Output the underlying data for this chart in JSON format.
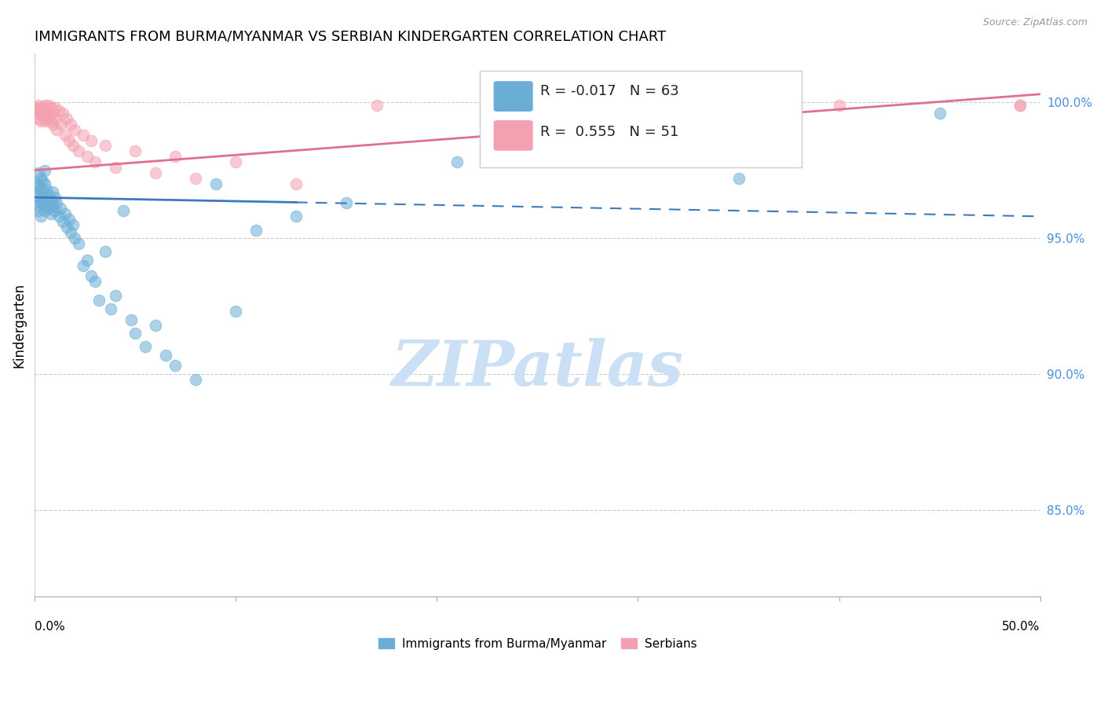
{
  "title": "IMMIGRANTS FROM BURMA/MYANMAR VS SERBIAN KINDERGARTEN CORRELATION CHART",
  "source": "Source: ZipAtlas.com",
  "ylabel": "Kindergarten",
  "ytick_labels": [
    "100.0%",
    "95.0%",
    "90.0%",
    "85.0%"
  ],
  "ytick_values": [
    1.0,
    0.95,
    0.9,
    0.85
  ],
  "xlim": [
    0.0,
    0.5
  ],
  "ylim": [
    0.818,
    1.018
  ],
  "legend_blue_r": "-0.017",
  "legend_blue_n": "63",
  "legend_pink_r": "0.555",
  "legend_pink_n": "51",
  "legend_label_blue": "Immigrants from Burma/Myanmar",
  "legend_label_pink": "Serbians",
  "blue_color": "#6aaed6",
  "pink_color": "#f4a0b0",
  "trendline_blue_color": "#3a7bbf",
  "trendline_pink_color": "#e07090",
  "watermark": "ZIPatlas",
  "watermark_color": "#cce0f5",
  "blue_scatter": [
    [
      0.001,
      0.97
    ],
    [
      0.001,
      0.966
    ],
    [
      0.001,
      0.962
    ],
    [
      0.002,
      0.974
    ],
    [
      0.002,
      0.969
    ],
    [
      0.002,
      0.965
    ],
    [
      0.002,
      0.96
    ],
    [
      0.003,
      0.972
    ],
    [
      0.003,
      0.968
    ],
    [
      0.003,
      0.963
    ],
    [
      0.003,
      0.958
    ],
    [
      0.004,
      0.971
    ],
    [
      0.004,
      0.967
    ],
    [
      0.004,
      0.963
    ],
    [
      0.005,
      0.975
    ],
    [
      0.005,
      0.97
    ],
    [
      0.005,
      0.965
    ],
    [
      0.005,
      0.96
    ],
    [
      0.006,
      0.968
    ],
    [
      0.006,
      0.962
    ],
    [
      0.007,
      0.966
    ],
    [
      0.007,
      0.961
    ],
    [
      0.008,
      0.964
    ],
    [
      0.008,
      0.959
    ],
    [
      0.009,
      0.967
    ],
    [
      0.009,
      0.962
    ],
    [
      0.01,
      0.965
    ],
    [
      0.01,
      0.96
    ],
    [
      0.011,
      0.963
    ],
    [
      0.012,
      0.958
    ],
    [
      0.013,
      0.961
    ],
    [
      0.014,
      0.956
    ],
    [
      0.015,
      0.959
    ],
    [
      0.016,
      0.954
    ],
    [
      0.017,
      0.957
    ],
    [
      0.018,
      0.952
    ],
    [
      0.019,
      0.955
    ],
    [
      0.02,
      0.95
    ],
    [
      0.022,
      0.948
    ],
    [
      0.024,
      0.94
    ],
    [
      0.026,
      0.942
    ],
    [
      0.028,
      0.936
    ],
    [
      0.03,
      0.934
    ],
    [
      0.032,
      0.927
    ],
    [
      0.035,
      0.945
    ],
    [
      0.038,
      0.924
    ],
    [
      0.04,
      0.929
    ],
    [
      0.044,
      0.96
    ],
    [
      0.048,
      0.92
    ],
    [
      0.05,
      0.915
    ],
    [
      0.055,
      0.91
    ],
    [
      0.06,
      0.918
    ],
    [
      0.065,
      0.907
    ],
    [
      0.07,
      0.903
    ],
    [
      0.08,
      0.898
    ],
    [
      0.09,
      0.97
    ],
    [
      0.1,
      0.923
    ],
    [
      0.11,
      0.953
    ],
    [
      0.13,
      0.958
    ],
    [
      0.155,
      0.963
    ],
    [
      0.21,
      0.978
    ],
    [
      0.35,
      0.972
    ],
    [
      0.45,
      0.996
    ]
  ],
  "pink_scatter": [
    [
      0.001,
      0.998
    ],
    [
      0.001,
      0.996
    ],
    [
      0.002,
      0.999
    ],
    [
      0.002,
      0.997
    ],
    [
      0.002,
      0.994
    ],
    [
      0.003,
      0.998
    ],
    [
      0.003,
      0.996
    ],
    [
      0.003,
      0.993
    ],
    [
      0.004,
      0.997
    ],
    [
      0.004,
      0.995
    ],
    [
      0.005,
      0.999
    ],
    [
      0.005,
      0.996
    ],
    [
      0.005,
      0.993
    ],
    [
      0.006,
      0.997
    ],
    [
      0.006,
      0.994
    ],
    [
      0.007,
      0.999
    ],
    [
      0.007,
      0.995
    ],
    [
      0.008,
      0.998
    ],
    [
      0.008,
      0.993
    ],
    [
      0.009,
      0.996
    ],
    [
      0.009,
      0.992
    ],
    [
      0.01,
      0.998
    ],
    [
      0.01,
      0.994
    ],
    [
      0.011,
      0.99
    ],
    [
      0.012,
      0.997
    ],
    [
      0.013,
      0.992
    ],
    [
      0.014,
      0.996
    ],
    [
      0.015,
      0.988
    ],
    [
      0.016,
      0.994
    ],
    [
      0.017,
      0.986
    ],
    [
      0.018,
      0.992
    ],
    [
      0.019,
      0.984
    ],
    [
      0.02,
      0.99
    ],
    [
      0.022,
      0.982
    ],
    [
      0.024,
      0.988
    ],
    [
      0.026,
      0.98
    ],
    [
      0.028,
      0.986
    ],
    [
      0.03,
      0.978
    ],
    [
      0.035,
      0.984
    ],
    [
      0.04,
      0.976
    ],
    [
      0.05,
      0.982
    ],
    [
      0.06,
      0.974
    ],
    [
      0.07,
      0.98
    ],
    [
      0.08,
      0.972
    ],
    [
      0.1,
      0.978
    ],
    [
      0.13,
      0.97
    ],
    [
      0.17,
      0.999
    ],
    [
      0.28,
      0.998
    ],
    [
      0.4,
      0.999
    ],
    [
      0.49,
      0.999
    ],
    [
      0.49,
      0.999
    ]
  ]
}
